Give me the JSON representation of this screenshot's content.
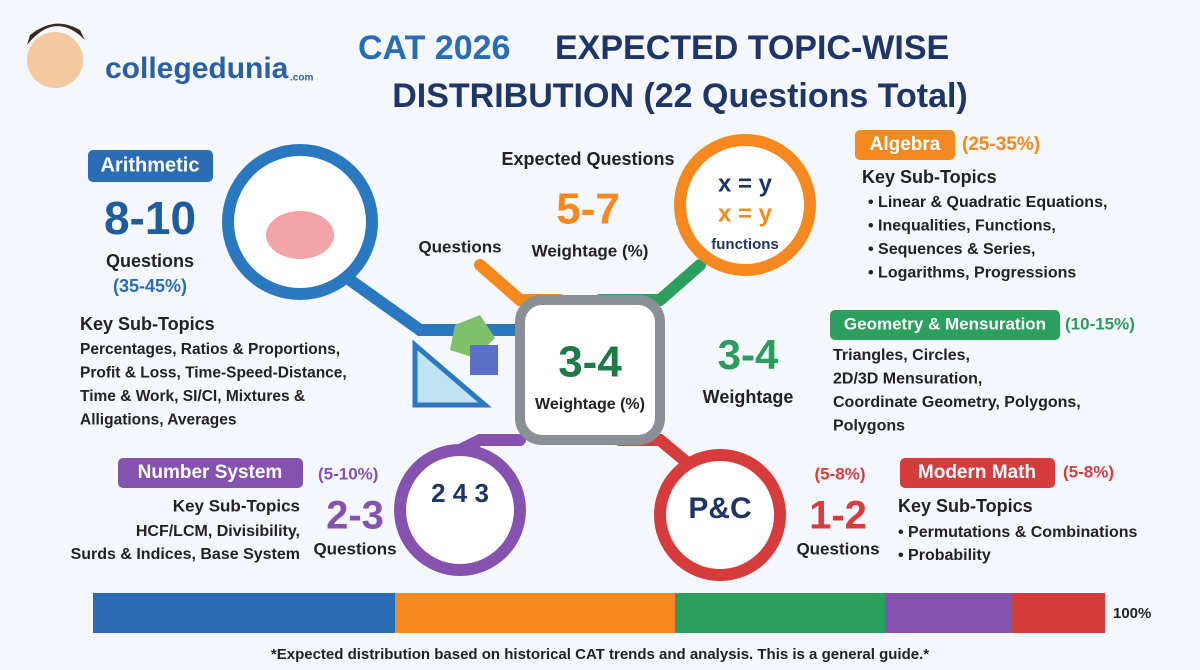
{
  "brand": {
    "name": "collegedunia",
    "suffix": ".com"
  },
  "title": {
    "highlight": "CAT 2026",
    "line1": "EXPECTED TOPIC-WISE",
    "line2": "DISTRIBUTION (22 Questions Total)"
  },
  "key": {
    "expected": "Expected Questions",
    "range": "5-7",
    "weightage": "Weightage (%)",
    "questions": "Questions"
  },
  "hub": {
    "range": "3-4",
    "weightage": "Weightage (%)"
  },
  "topics": {
    "arithmetic": {
      "name": "Arithmetic",
      "range": "8-10",
      "unit": "Questions",
      "share": "(35-45%)",
      "heading": "Key Sub-Topics",
      "lines": [
        "Percentages, Ratios & Proportions,",
        "Profit & Loss, Time-Speed-Distance,",
        "Time & Work, SI/CI, Mixtures &",
        "Alligations, Averages"
      ]
    },
    "algebra": {
      "name": "Algebra",
      "share": "(25-35%)",
      "heading": "Key Sub-Topics",
      "lines": [
        "• Linear & Quadratic Equations,",
        "• Inequalities, Functions,",
        "• Sequences & Series,",
        "• Logarithms, Progressions"
      ],
      "icon": [
        "x = y",
        "x = y",
        "functions"
      ]
    },
    "geometry": {
      "name": "Geometry & Mensuration",
      "share": "(10-15%)",
      "range": "3-4",
      "unit": "Weightage",
      "lines": [
        "Triangles, Circles,",
        "2D/3D Mensuration,",
        "Coordinate Geometry, Polygons,",
        "Polygons"
      ]
    },
    "number_system": {
      "name": "Number System",
      "share": "(5-10%)",
      "range": "2-3",
      "unit": "Questions",
      "heading": "Key Sub-Topics",
      "lines": [
        "HCF/LCM, Divisibility,",
        "Surds & Indices, Base System"
      ],
      "icon": "2 4 3"
    },
    "modern_math": {
      "name": "Modern Math",
      "share": "(5-8%)",
      "share_left": "(5-8%)",
      "range": "1-2",
      "unit": "Questions",
      "heading": "Key Sub-Topics",
      "lines": [
        "• Permutations & Combinations",
        "• Probability"
      ],
      "icon": "P&C"
    }
  },
  "bar_label": "100%",
  "footnote": "*Expected distribution based on historical CAT trends and analysis. This is a general guide.*"
}
